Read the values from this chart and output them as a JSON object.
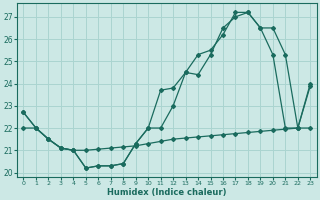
{
  "background_color": "#cce8e5",
  "grid_color": "#aad4d0",
  "line_color": "#1a6b5e",
  "xlabel": "Humidex (Indice chaleur)",
  "xlim": [
    -0.5,
    23.5
  ],
  "ylim": [
    19.8,
    27.6
  ],
  "yticks": [
    20,
    21,
    22,
    23,
    24,
    25,
    26,
    27
  ],
  "xticks": [
    0,
    1,
    2,
    3,
    4,
    5,
    6,
    7,
    8,
    9,
    10,
    11,
    12,
    13,
    14,
    15,
    16,
    17,
    18,
    19,
    20,
    21,
    22,
    23
  ],
  "line1_x": [
    0,
    1,
    2,
    3,
    4,
    5,
    6,
    7,
    8,
    9,
    10,
    11,
    12,
    13,
    14,
    15,
    16,
    17,
    18,
    19,
    20,
    21,
    22,
    23
  ],
  "line1_y": [
    22.7,
    22.0,
    21.5,
    21.1,
    21.0,
    20.2,
    20.3,
    20.3,
    20.4,
    21.3,
    22.0,
    23.7,
    23.8,
    24.5,
    24.4,
    25.3,
    26.5,
    27.0,
    27.2,
    26.5,
    25.3,
    22.0,
    22.0,
    23.9
  ],
  "line2_x": [
    0,
    1,
    2,
    3,
    4,
    5,
    6,
    7,
    8,
    9,
    10,
    11,
    12,
    13,
    14,
    15,
    16,
    17,
    18,
    19,
    20,
    21,
    22,
    23
  ],
  "line2_y": [
    22.7,
    22.0,
    21.5,
    21.1,
    21.0,
    20.2,
    20.3,
    20.3,
    20.4,
    21.3,
    22.0,
    22.0,
    23.0,
    24.5,
    25.3,
    25.5,
    26.2,
    27.2,
    27.2,
    26.5,
    26.5,
    25.3,
    22.0,
    24.0
  ],
  "line3_x": [
    0,
    1,
    2,
    3,
    4,
    5,
    6,
    7,
    8,
    9,
    10,
    11,
    12,
    13,
    14,
    15,
    16,
    17,
    18,
    19,
    20,
    21,
    22,
    23
  ],
  "line3_y": [
    22.0,
    22.0,
    21.5,
    21.1,
    21.0,
    21.0,
    21.05,
    21.1,
    21.15,
    21.2,
    21.3,
    21.4,
    21.5,
    21.55,
    21.6,
    21.65,
    21.7,
    21.75,
    21.8,
    21.85,
    21.9,
    21.95,
    22.0,
    22.0
  ]
}
